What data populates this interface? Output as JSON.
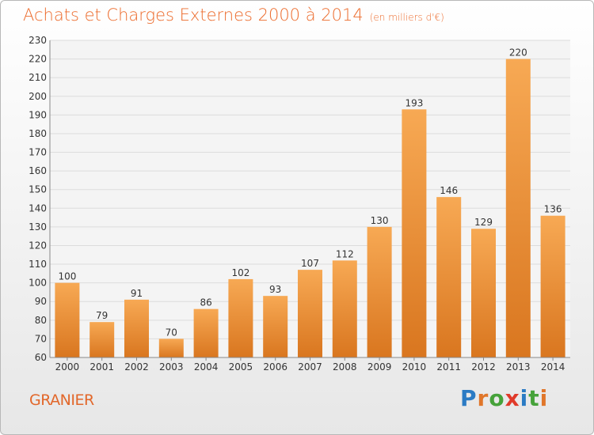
{
  "title": "Achats et Charges Externes 2000 à 2014",
  "subtitle": "(en milliers d'€)",
  "commune": "GRANIER",
  "brand": {
    "letters": [
      "P",
      "r",
      "o",
      "x",
      "i",
      "t",
      "i"
    ],
    "colors": [
      "#2b7bc4",
      "#e0762a",
      "#46a23a",
      "#e03a2a",
      "#2b7bc4",
      "#46a23a",
      "#e0762a"
    ]
  },
  "colors": {
    "bar_light": "#f7a954",
    "bar_dark": "#d9761f",
    "title": "#ec6b2c"
  },
  "chart_data": {
    "type": "bar",
    "categories": [
      "2000",
      "2001",
      "2002",
      "2003",
      "2004",
      "2005",
      "2006",
      "2007",
      "2008",
      "2009",
      "2010",
      "2011",
      "2012",
      "2013",
      "2014"
    ],
    "values": [
      100,
      79,
      91,
      70,
      86,
      102,
      93,
      107,
      112,
      130,
      193,
      146,
      129,
      220,
      136
    ],
    "data_labels": [
      "100",
      "79",
      "91",
      "70",
      "86",
      "102",
      "93",
      "107",
      "112",
      "130",
      "193",
      "146",
      "129",
      "220",
      "136"
    ],
    "ylim": [
      60,
      230
    ],
    "yticks": [
      "60",
      "70",
      "80",
      "90",
      "100",
      "110",
      "120",
      "130",
      "140",
      "150",
      "160",
      "170",
      "180",
      "190",
      "200",
      "210",
      "220",
      "230"
    ],
    "grid": true
  }
}
